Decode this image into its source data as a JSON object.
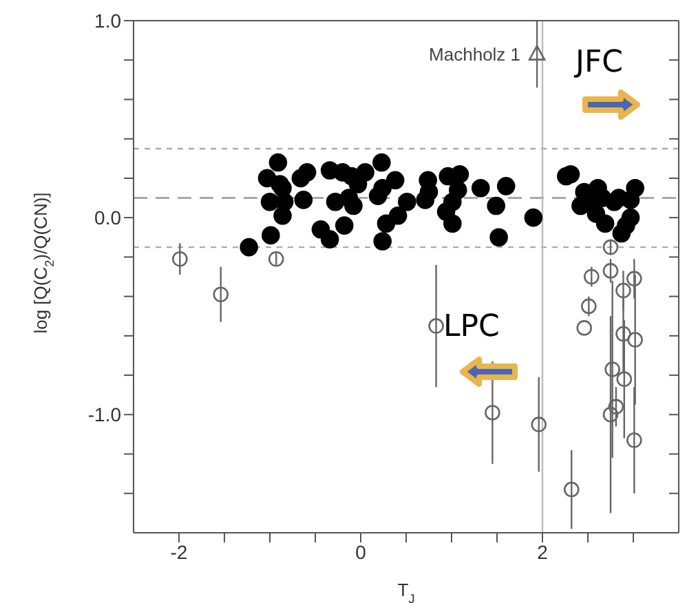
{
  "chart_data": {
    "type": "scatter",
    "xlabel": "T$_{J}$",
    "ylabel": "log [Q(C$_{2}$)/Q(CN)]",
    "xlim": [
      -2.5,
      3.5
    ],
    "xticks": [
      {
        "value": -2,
        "label": "-2"
      },
      {
        "value": -1.5,
        "label": null
      },
      {
        "value": -1,
        "label": null
      },
      {
        "value": -0.5,
        "label": null
      },
      {
        "value": 0,
        "label": "0"
      },
      {
        "value": 0.5,
        "label": null
      },
      {
        "value": 1,
        "label": null
      },
      {
        "value": 1.5,
        "label": null
      },
      {
        "value": 2,
        "label": "2"
      },
      {
        "value": 2.5,
        "label": null
      },
      {
        "value": 3,
        "label": null
      }
    ],
    "ylim": [
      -1.6,
      1.0
    ],
    "yticks": [
      {
        "value": -1.4,
        "label": null
      },
      {
        "value": -1.2,
        "label": null
      },
      {
        "value": -1,
        "label": "-1.0"
      },
      {
        "value": -0.8,
        "label": null
      },
      {
        "value": -0.6,
        "label": null
      },
      {
        "value": -0.4,
        "label": null
      },
      {
        "value": -0.2,
        "label": null
      },
      {
        "value": 0,
        "label": "0.0"
      },
      {
        "value": 0.2,
        "label": null
      },
      {
        "value": 0.4,
        "label": null
      },
      {
        "value": 0.6,
        "label": null
      },
      {
        "value": 0.8,
        "label": null
      },
      {
        "value": 1,
        "label": "1.0"
      }
    ],
    "series": [
      {
        "color": "#000000",
        "marker": "circle",
        "x": [
          -1.23,
          -0.99,
          -0.91,
          -1.03,
          -0.89,
          -1.0,
          -0.86,
          -0.84,
          -0.86,
          -0.66,
          -0.59,
          -0.63,
          -0.44,
          -0.34,
          -0.34,
          -0.28,
          -0.18,
          -0.2,
          -0.1,
          -0.13,
          -0.08,
          -0.03,
          0.05,
          0.19,
          0.23,
          0.24,
          0.24,
          0.28,
          0.38,
          0.41,
          0.51,
          0.74,
          0.75,
          0.71,
          0.96,
          1.09,
          1.07,
          1.01,
          0.94,
          1.01,
          1.32,
          1.49,
          1.6,
          1.52,
          1.9,
          2.26,
          2.31,
          2.46,
          2.42,
          2.56,
          2.61,
          2.66,
          2.59,
          2.69,
          2.79,
          2.84,
          2.97,
          3.02,
          2.87,
          2.92,
          2.97
        ],
        "values": [
          -0.15,
          -0.09,
          0.28,
          0.2,
          0.17,
          0.08,
          0.15,
          0.08,
          0.01,
          0.2,
          0.23,
          0.09,
          -0.06,
          -0.11,
          0.24,
          0.08,
          -0.04,
          0.23,
          0.21,
          0.1,
          0.06,
          0.17,
          0.23,
          0.11,
          0.28,
          0.15,
          -0.12,
          -0.03,
          0.19,
          0.01,
          0.08,
          0.19,
          0.13,
          0.09,
          0.21,
          0.22,
          0.14,
          0.08,
          0.03,
          -0.03,
          0.15,
          0.06,
          0.16,
          -0.1,
          0.0,
          0.21,
          0.22,
          0.13,
          0.06,
          0.07,
          0.15,
          0.1,
          0.02,
          -0.03,
          0.08,
          0.1,
          0.09,
          0.15,
          -0.08,
          -0.04,
          0.0
        ]
      },
      {
        "color": "#666666",
        "marker": "circle",
        "x": [
          -1.99,
          -1.54,
          -0.93,
          0.83,
          1.45,
          1.96,
          2.32,
          2.46,
          2.51,
          2.54,
          2.75,
          2.75,
          3.01,
          2.89,
          2.89,
          3.02,
          2.77,
          2.9,
          2.81,
          2.75,
          3.01
        ],
        "values": [
          -0.21,
          -0.39,
          -0.21,
          -0.55,
          -0.99,
          -1.05,
          -1.38,
          -0.56,
          -0.45,
          -0.3,
          -0.15,
          -0.27,
          -0.31,
          -0.37,
          -0.59,
          -0.62,
          -0.77,
          -0.82,
          -0.96,
          -1.0,
          -1.13
        ],
        "errors": [
          0.08,
          0.14,
          0.03,
          0.31,
          0.26,
          0.24,
          0.2,
          null,
          0.05,
          0.05,
          0.04,
          0.06,
          0.1,
          0.1,
          0.2,
          0.33,
          0.45,
          0.3,
          0.1,
          0.5,
          0.27
        ]
      },
      {
        "color": "#666666",
        "marker": "triangle",
        "x": [
          1.94
        ],
        "values": [
          0.83
        ],
        "errors": [
          0.17
        ]
      }
    ],
    "ref_lines": [
      {
        "axis": "y",
        "value": 0.35,
        "color": "#aaaaaa",
        "line_style": "dotted"
      },
      {
        "axis": "y",
        "value": 0.1,
        "color": "#999999",
        "line_style": "dashed"
      },
      {
        "axis": "y",
        "value": -0.15,
        "color": "#aaaaaa",
        "line_style": "dotted"
      },
      {
        "axis": "x",
        "value": 2,
        "color": "#bbbbbb",
        "line_style": "solid"
      }
    ],
    "annotations": [
      {
        "text": "Machholz 1",
        "x": 1.94,
        "y": 0.83
      },
      "JFC",
      "LPC"
    ]
  }
}
